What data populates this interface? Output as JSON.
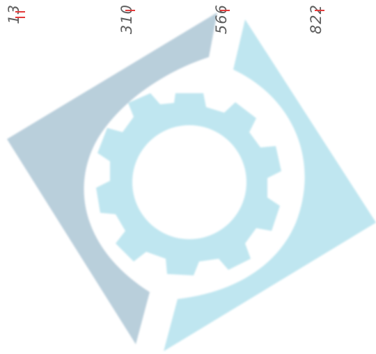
{
  "ruler": {
    "marks": [
      {
        "label": "13"
      },
      {
        "label": "310"
      },
      {
        "label": "566"
      },
      {
        "label": "822"
      }
    ],
    "tick_color": "#e33a3a"
  },
  "logo": {
    "description_icon": "gear-in-ring-logo",
    "colors": {
      "left_segment": "#b9cfdb",
      "right_segment": "#bfe6f0",
      "gear": "#bfe6f0",
      "background": "#ffffff"
    }
  }
}
